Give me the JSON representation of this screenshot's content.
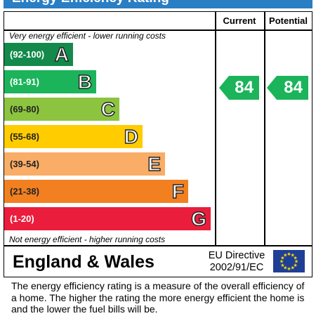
{
  "header": {
    "title": "Energy Efficiency Rating",
    "bar_color": "#2a7ec4"
  },
  "columns": {
    "current": "Current",
    "potential": "Potential"
  },
  "notes": {
    "top": "Very energy efficient - lower running costs",
    "bottom": "Not energy efficient - higher running costs"
  },
  "bands": [
    {
      "range": "(92-100)",
      "letter": "A",
      "color": "#138a4c"
    },
    {
      "range": "(81-91)",
      "letter": "B",
      "color": "#1bb45a"
    },
    {
      "range": "(69-80)",
      "letter": "C",
      "color": "#8cc43f"
    },
    {
      "range": "(55-68)",
      "letter": "D",
      "color": "#ffcc00"
    },
    {
      "range": "(39-54)",
      "letter": "E",
      "color": "#f9ad66"
    },
    {
      "range": "(21-38)",
      "letter": "F",
      "color": "#f28021"
    },
    {
      "range": "(1-20)",
      "letter": "G",
      "color": "#ea1d3c"
    }
  ],
  "ratings": {
    "current": {
      "value": "84",
      "band": "B",
      "color": "#1bb45a"
    },
    "potential": {
      "value": "84",
      "band": "B",
      "color": "#1bb45a"
    }
  },
  "footer": {
    "region": "England & Wales",
    "directive_line1": "EU Directive",
    "directive_line2": "2002/91/EC",
    "flag_icon": "eu-flag-icon"
  },
  "description": "The energy efficiency rating is a measure of the overall efficiency of a home.  The higher the rating the more energy efficient the home is and the lower the fuel bills will be."
}
